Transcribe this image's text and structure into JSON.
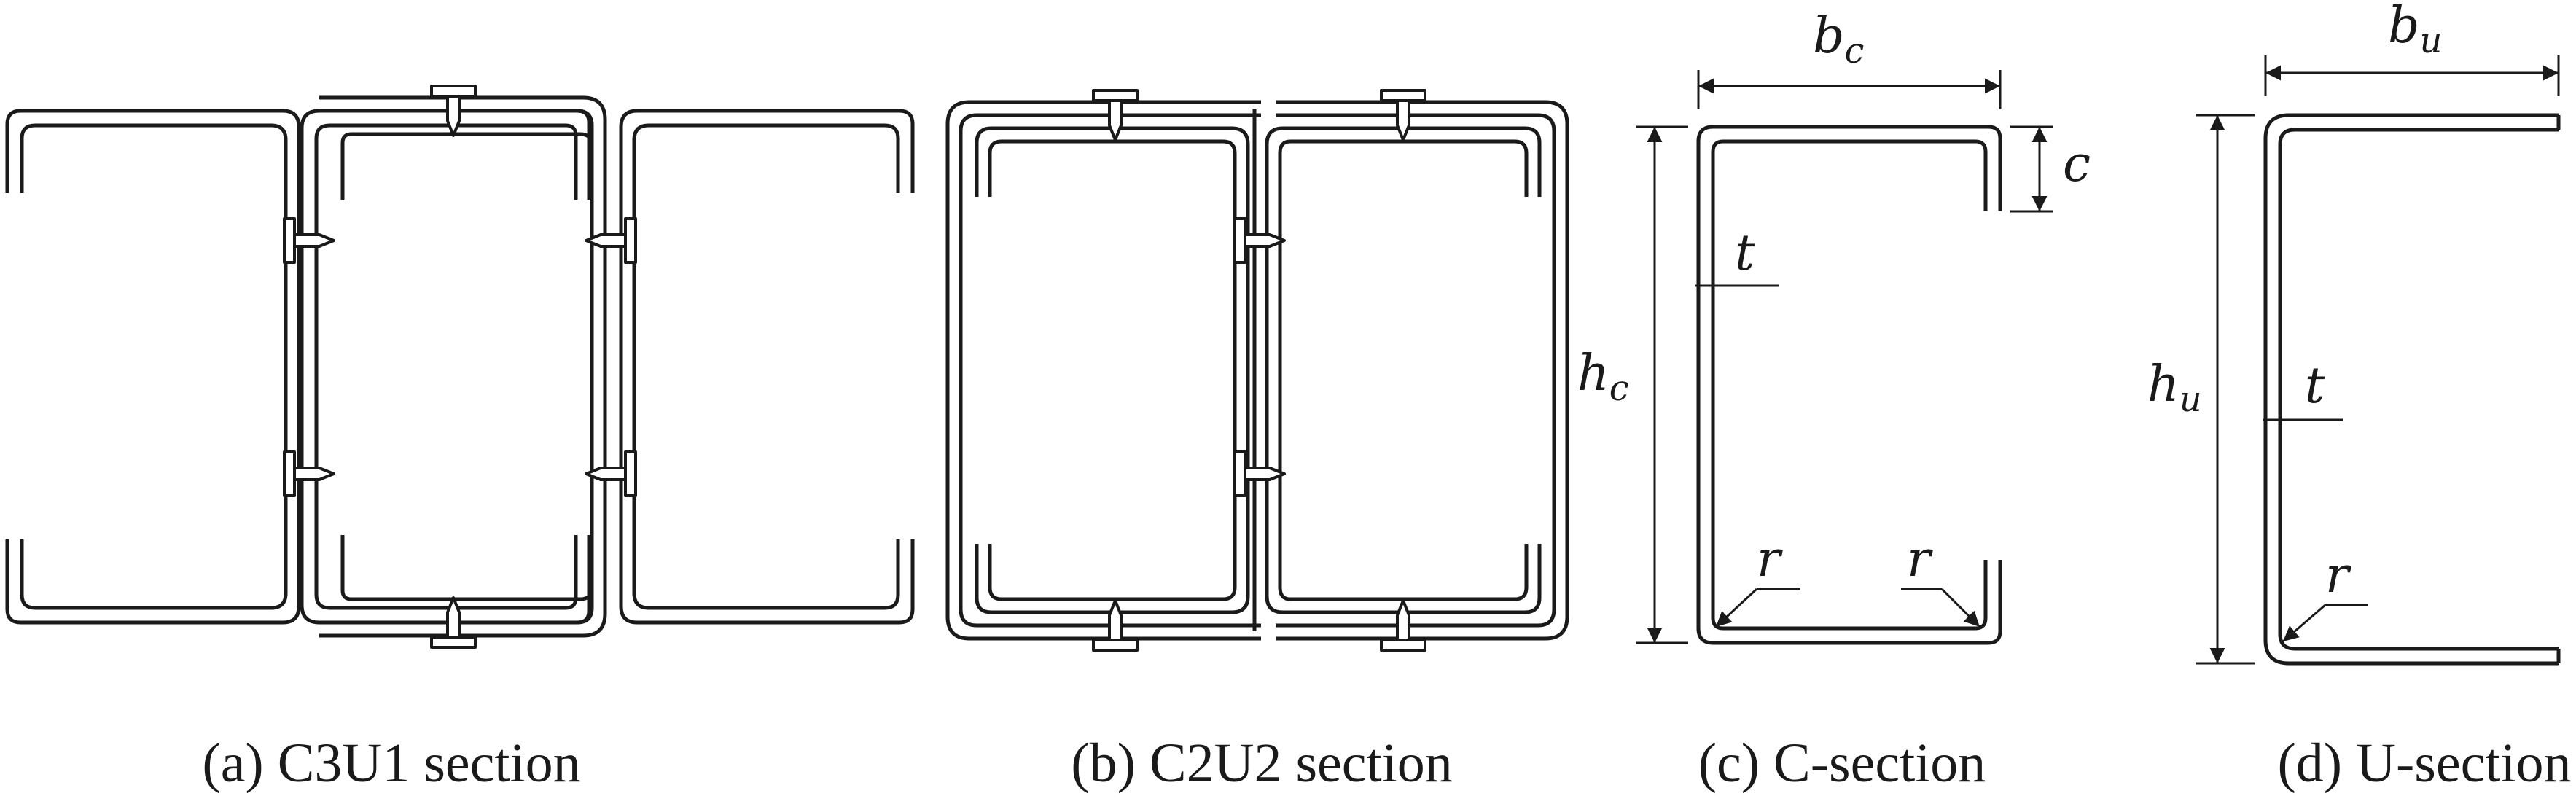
{
  "captions": {
    "a": "(a) C3U1 section",
    "b": "(b) C2U2 section",
    "c": "(c) C-section",
    "d": "(d) U-section"
  },
  "symbols": {
    "bc": {
      "main": "b",
      "sub": "c"
    },
    "bu": {
      "main": "b",
      "sub": "u"
    },
    "hc": {
      "main": "h",
      "sub": "c"
    },
    "hu": {
      "main": "h",
      "sub": "u"
    },
    "c": "c",
    "t": "t",
    "r": "r"
  }
}
